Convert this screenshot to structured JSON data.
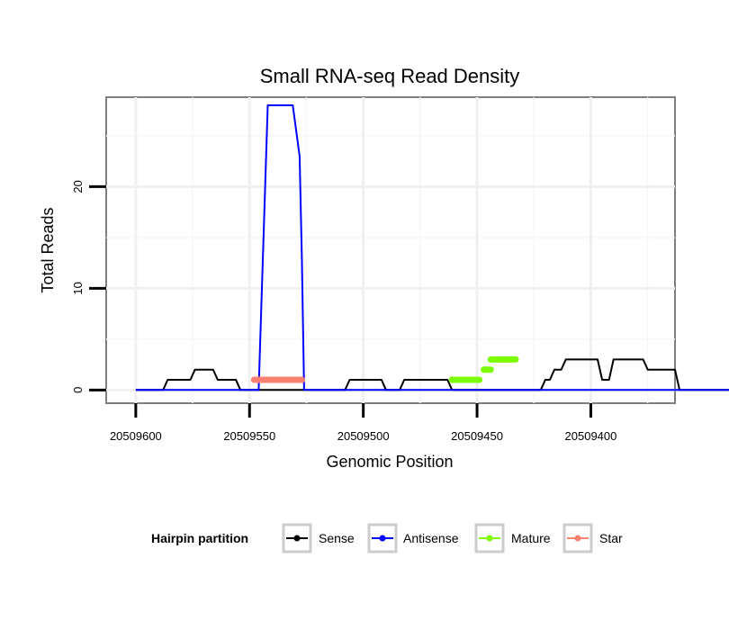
{
  "chart_data": {
    "type": "line",
    "title": "Small RNA-seq Read Density",
    "xlabel": "Genomic Position",
    "ylabel": "Total Reads",
    "x_reversed": true,
    "xlim": [
      20509613,
      20509363
    ],
    "ylim": [
      -1.3,
      28.8
    ],
    "x_ticks": [
      20509600,
      20509550,
      20509500,
      20509450,
      20509400
    ],
    "x_tick_labels": [
      "20509600",
      "20509550",
      "20509500",
      "20509450",
      "20509400"
    ],
    "y_ticks": [
      0,
      10,
      20
    ],
    "y_tick_labels": [
      "0",
      "10",
      "20"
    ],
    "grid": true,
    "legend": {
      "title": "Hairpin partition",
      "position": "bottom",
      "entries": [
        {
          "label": "Sense",
          "color": "#000000"
        },
        {
          "label": "Antisense",
          "color": "#0000ff"
        },
        {
          "label": "Mature",
          "color": "#7cfc00"
        },
        {
          "label": "Star",
          "color": "#fa8072"
        }
      ]
    },
    "series": [
      {
        "name": "Sense",
        "color": "#000000",
        "x": [
          20509600,
          20509588,
          20509586,
          20509576,
          20509574,
          20509566,
          20509564,
          20509556,
          20509554,
          20509508,
          20509506,
          20509492,
          20509490,
          20509484,
          20509482,
          20509463,
          20509461,
          20509422,
          20509420,
          20509418,
          20509416,
          20509413,
          20509411,
          20509397,
          20509395,
          20509392,
          20509390,
          20509377,
          20509375,
          20509373,
          20509372,
          20509363,
          20509361,
          20509339
        ],
        "y": [
          0,
          0,
          1,
          1,
          2,
          2,
          1,
          1,
          0,
          0,
          1,
          1,
          0,
          0,
          1,
          1,
          0,
          0,
          1,
          1,
          2,
          2,
          3,
          3,
          1,
          1,
          3,
          3,
          2,
          2,
          2,
          2,
          0,
          0
        ]
      },
      {
        "name": "Antisense",
        "color": "#0000ff",
        "x": [
          20509600,
          20509546,
          20509542,
          20509531,
          20509528,
          20509527,
          20509526,
          20509339
        ],
        "y": [
          0,
          0,
          28,
          28,
          23,
          13,
          0,
          0
        ]
      },
      {
        "name": "Mature",
        "color": "#7cfc00",
        "segments": [
          {
            "x_start": 20509461,
            "x_end": 20509449,
            "y": 1
          },
          {
            "x_start": 20509447,
            "x_end": 20509444,
            "y": 2
          },
          {
            "x_start": 20509444,
            "x_end": 20509433,
            "y": 3
          }
        ]
      },
      {
        "name": "Star",
        "color": "#fa8072",
        "segments": [
          {
            "x_start": 20509548,
            "x_end": 20509527,
            "y": 1
          }
        ]
      }
    ]
  }
}
